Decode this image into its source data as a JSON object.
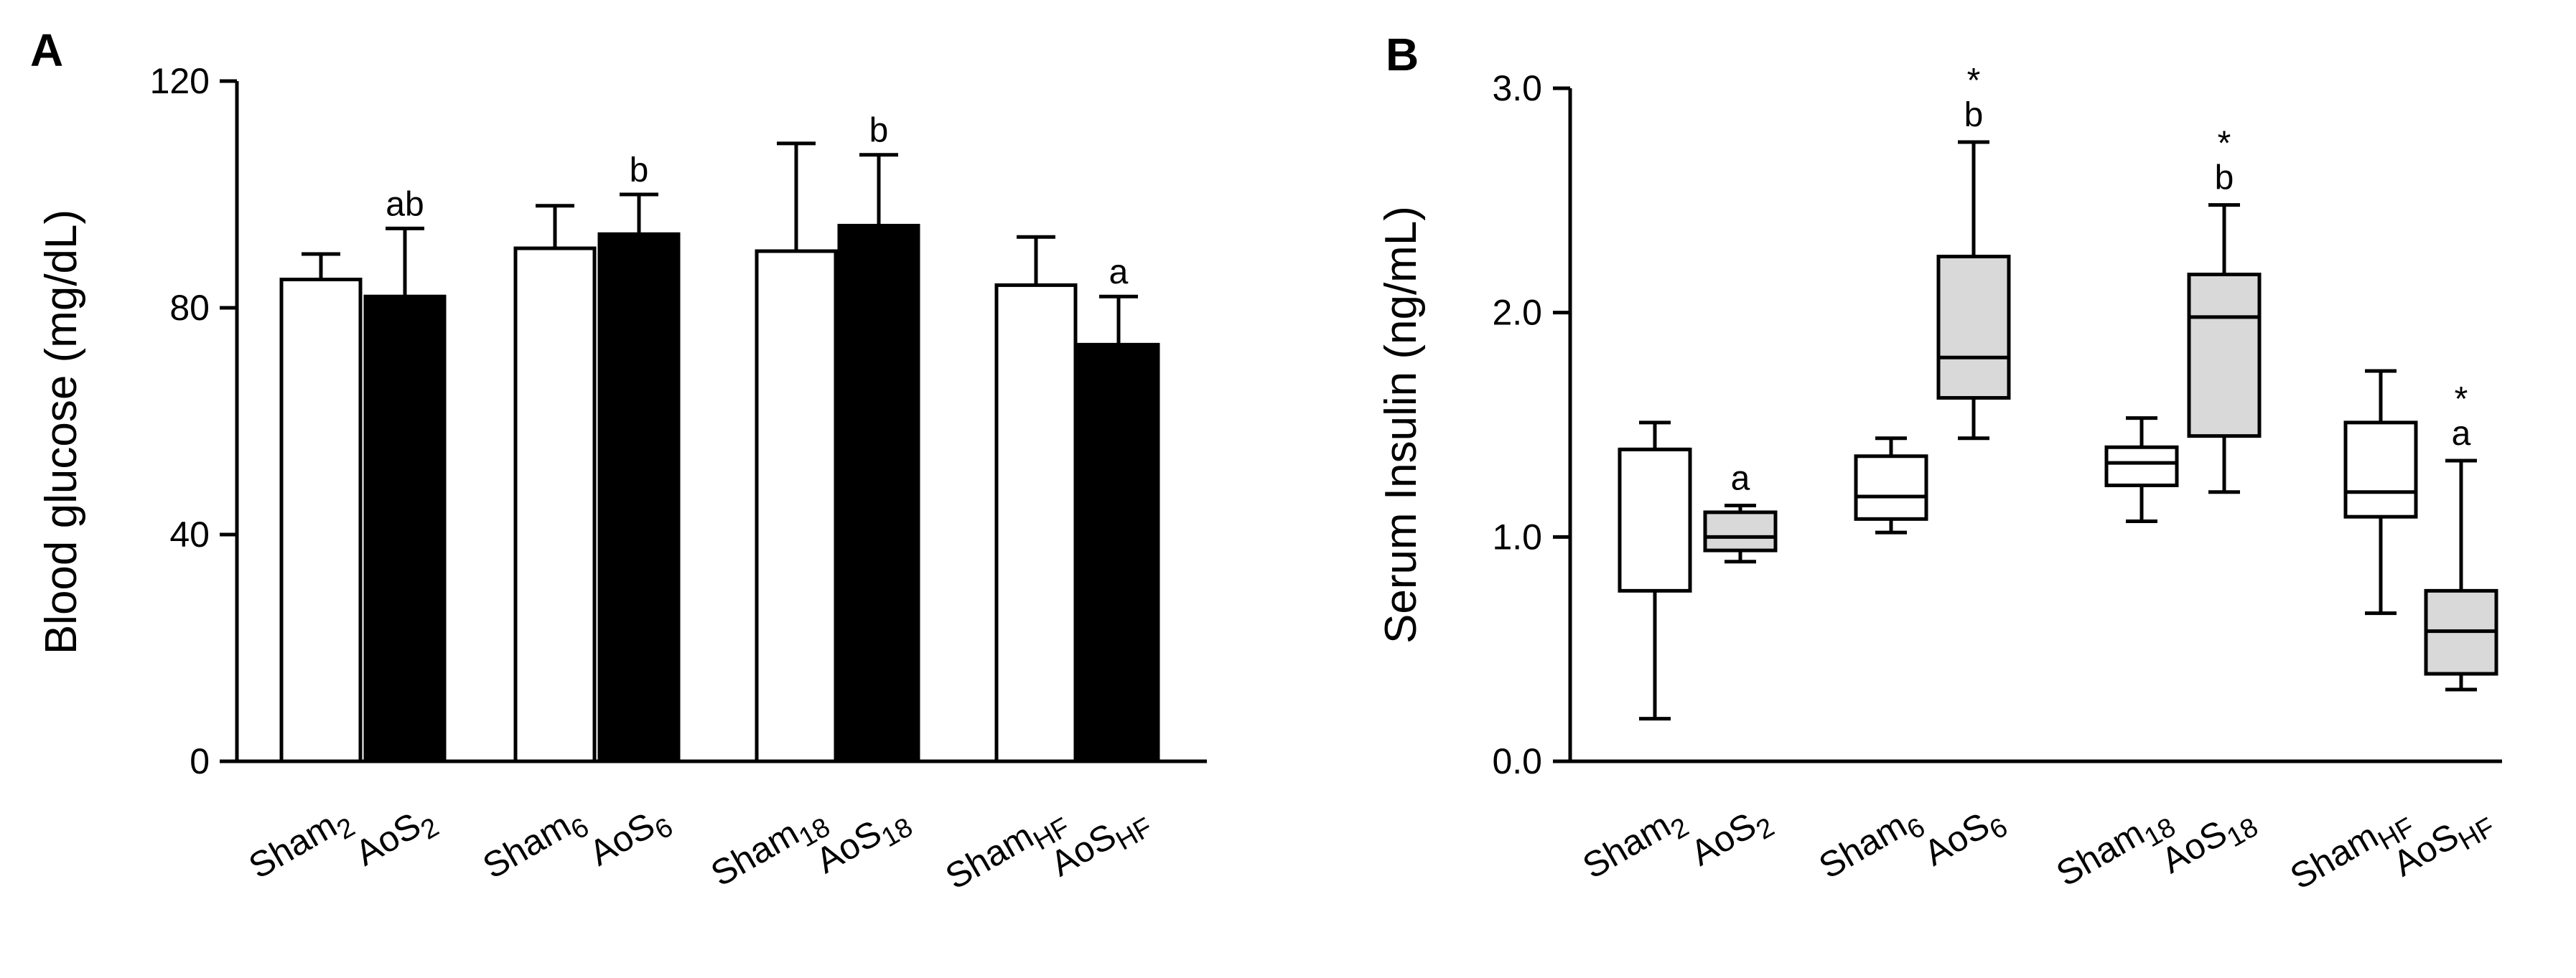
{
  "chart_data": [
    {
      "panel": "A",
      "type": "bar",
      "ylabel": "Blood glucose (mg/dL)",
      "ylim": [
        0,
        120
      ],
      "yticks": [
        0,
        40,
        80,
        120
      ],
      "ytick_labels": [
        "0",
        "40",
        "80",
        "120"
      ],
      "colors": {
        "sham_fill": "#ffffff",
        "aos_fill": "#000000",
        "stroke": "#000000"
      },
      "categories": [
        {
          "base": "Sham",
          "sub": "2"
        },
        {
          "base": "AoS",
          "sub": "2"
        },
        {
          "base": "Sham",
          "sub": "6"
        },
        {
          "base": "AoS",
          "sub": "6"
        },
        {
          "base": "Sham",
          "sub": "18"
        },
        {
          "base": "AoS",
          "sub": "18"
        },
        {
          "base": "Sham",
          "sub": "HF"
        },
        {
          "base": "AoS",
          "sub": "HF"
        }
      ],
      "groups": [
        "sham",
        "aos",
        "sham",
        "aos",
        "sham",
        "aos",
        "sham",
        "aos"
      ],
      "values": [
        85,
        82,
        90.5,
        93,
        90,
        94.5,
        84,
        73.5
      ],
      "errors": [
        4.5,
        12,
        7.5,
        7,
        19,
        12.5,
        8.5,
        8.5
      ],
      "annotations": [
        "",
        "ab",
        "",
        "b",
        "",
        "b",
        "",
        "a"
      ]
    },
    {
      "panel": "B",
      "type": "box",
      "ylabel": "Serum Insulin (ng/mL)",
      "ylim": [
        0,
        3
      ],
      "yticks": [
        0,
        1,
        2,
        3
      ],
      "ytick_labels": [
        "0.0",
        "1.0",
        "2.0",
        "3.0"
      ],
      "colors": {
        "sham_fill": "#ffffff",
        "aos_fill": "#d9d9d9",
        "stroke": "#000000"
      },
      "categories": [
        {
          "base": "Sham",
          "sub": "2"
        },
        {
          "base": "AoS",
          "sub": "2"
        },
        {
          "base": "Sham",
          "sub": "6"
        },
        {
          "base": "AoS",
          "sub": "6"
        },
        {
          "base": "Sham",
          "sub": "18"
        },
        {
          "base": "AoS",
          "sub": "18"
        },
        {
          "base": "Sham",
          "sub": "HF"
        },
        {
          "base": "AoS",
          "sub": "HF"
        }
      ],
      "groups": [
        "sham",
        "aos",
        "sham",
        "aos",
        "sham",
        "aos",
        "sham",
        "aos"
      ],
      "boxes": [
        {
          "min": 0.19,
          "q1": 0.76,
          "median": 1.39,
          "q3": 1.39,
          "max": 1.51
        },
        {
          "min": 0.89,
          "q1": 0.94,
          "median": 1.0,
          "q3": 1.11,
          "max": 1.14
        },
        {
          "min": 1.02,
          "q1": 1.08,
          "median": 1.18,
          "q3": 1.36,
          "max": 1.44
        },
        {
          "min": 1.44,
          "q1": 1.62,
          "median": 1.8,
          "q3": 2.25,
          "max": 2.76
        },
        {
          "min": 1.07,
          "q1": 1.23,
          "median": 1.33,
          "q3": 1.4,
          "max": 1.53
        },
        {
          "min": 1.2,
          "q1": 1.45,
          "median": 1.98,
          "q3": 2.17,
          "max": 2.48
        },
        {
          "min": 0.66,
          "q1": 1.09,
          "median": 1.2,
          "q3": 1.51,
          "max": 1.74
        },
        {
          "min": 0.32,
          "q1": 0.39,
          "median": 0.58,
          "q3": 0.76,
          "max": 1.34
        }
      ],
      "annotations": [
        "",
        "a",
        "",
        "b",
        "",
        "b",
        "",
        "a"
      ],
      "stars": [
        "",
        "",
        "",
        "*",
        "",
        "*",
        "",
        "*"
      ]
    }
  ]
}
